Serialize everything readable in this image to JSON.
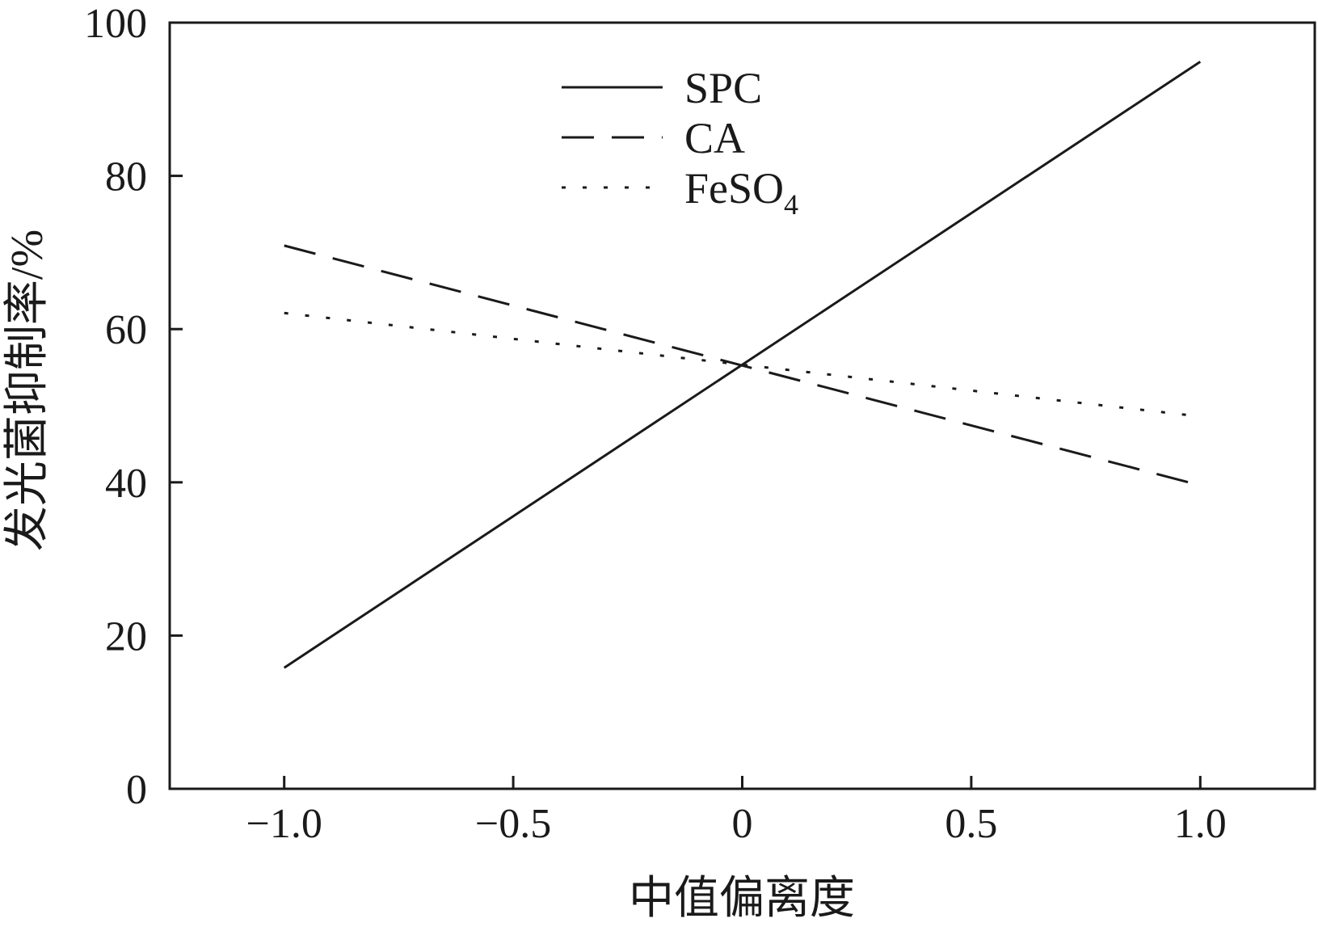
{
  "chart_data": {
    "type": "line",
    "title": "",
    "xlabel": "中值偏离度",
    "ylabel": "发光菌抑制率/%",
    "xlim": [
      -1.25,
      1.25
    ],
    "ylim": [
      0,
      100
    ],
    "x_ticks": [
      -1.0,
      -0.5,
      0,
      0.5,
      1.0
    ],
    "x_tick_labels": [
      "−1.0",
      "−0.5",
      "0",
      "0.5",
      "1.0"
    ],
    "y_ticks": [
      0,
      20,
      40,
      60,
      80,
      100
    ],
    "y_tick_labels": [
      "0",
      "20",
      "40",
      "60",
      "80",
      "100"
    ],
    "grid": false,
    "legend_position": "top-center",
    "series": [
      {
        "name": "SPC",
        "legend_main": "SPC",
        "legend_sub": "",
        "line_style": "solid",
        "color": "#1a1a1a",
        "x": [
          -1.0,
          1.0
        ],
        "y": [
          15.8,
          94.9
        ]
      },
      {
        "name": "CA",
        "legend_main": "CA",
        "legend_sub": "",
        "line_style": "dashed",
        "color": "#1a1a1a",
        "x": [
          -1.0,
          1.0
        ],
        "y": [
          70.9,
          39.6
        ]
      },
      {
        "name": "FeSO4",
        "legend_main": "FeSO",
        "legend_sub": "4",
        "line_style": "dotted",
        "color": "#1a1a1a",
        "x": [
          -1.0,
          1.0
        ],
        "y": [
          62.1,
          48.6
        ]
      }
    ]
  }
}
